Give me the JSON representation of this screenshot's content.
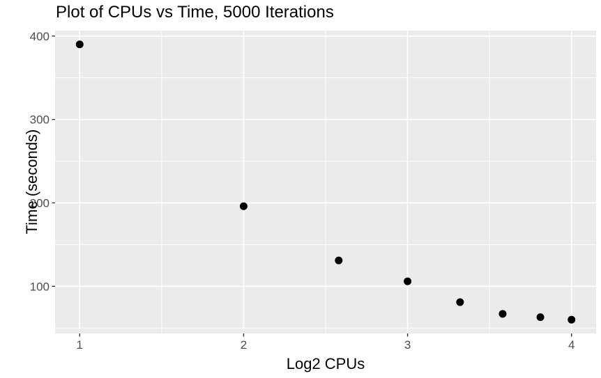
{
  "chart_data": {
    "type": "scatter",
    "title": "Plot of CPUs vs Time, 5000 Iterations",
    "xlabel": "Log2 CPUs",
    "ylabel": "Time (seconds)",
    "points": [
      {
        "x": 1.0,
        "y": 390
      },
      {
        "x": 2.0,
        "y": 196
      },
      {
        "x": 2.58,
        "y": 131
      },
      {
        "x": 3.0,
        "y": 106
      },
      {
        "x": 3.32,
        "y": 81
      },
      {
        "x": 3.58,
        "y": 67
      },
      {
        "x": 3.81,
        "y": 63
      },
      {
        "x": 4.0,
        "y": 60
      }
    ],
    "xlim": [
      0.85,
      4.15
    ],
    "ylim": [
      43.5,
      406.5
    ],
    "x_ticks": {
      "major": [
        1,
        2,
        3,
        4
      ],
      "minor": [
        1.5,
        2.5,
        3.5
      ]
    },
    "y_ticks": {
      "major": [
        100,
        200,
        300,
        400
      ],
      "minor": [
        50,
        150,
        250,
        350
      ]
    },
    "grid": "major-and-minor",
    "legend": "none",
    "style": {
      "page_background": "#FFFFFF",
      "panel_background": "#EBEBEB",
      "grid_color": "#FFFFFF",
      "point_color": "#000000",
      "tick_color": "#333333",
      "tick_label_color": "#4D4D4D",
      "tick_label_size": 17,
      "title_color": "#000000",
      "axis_title_color": "#000000"
    }
  }
}
